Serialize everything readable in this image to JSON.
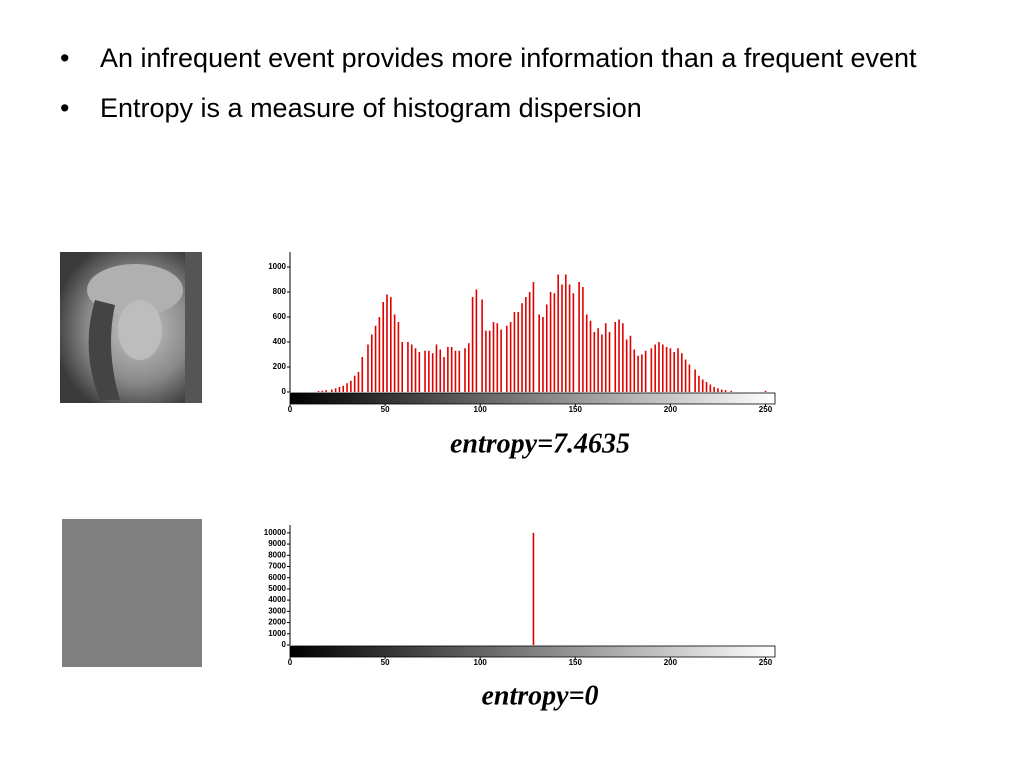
{
  "bullets": [
    "An infrequent event provides more information than a frequent event",
    "Entropy is a measure of histogram dispersion"
  ],
  "chart_data": [
    {
      "type": "bar",
      "annotation": "entropy=7.4635",
      "color": "#e00000",
      "x": [
        15,
        17,
        19,
        22,
        24,
        26,
        28,
        30,
        32,
        34,
        36,
        38,
        41,
        43,
        45,
        47,
        49,
        51,
        53,
        55,
        57,
        59,
        62,
        64,
        66,
        68,
        71,
        73,
        75,
        77,
        79,
        81,
        83,
        85,
        87,
        89,
        92,
        94,
        96,
        98,
        101,
        103,
        105,
        107,
        109,
        111,
        114,
        116,
        118,
        120,
        122,
        124,
        126,
        128,
        131,
        133,
        135,
        137,
        139,
        141,
        143,
        145,
        147,
        149,
        152,
        154,
        156,
        158,
        160,
        162,
        164,
        166,
        168,
        171,
        173,
        175,
        177,
        179,
        181,
        183,
        185,
        187,
        190,
        192,
        194,
        196,
        198,
        200,
        202,
        204,
        206,
        208,
        210,
        213,
        215,
        217,
        219,
        221,
        223,
        225,
        227,
        229,
        232,
        250
      ],
      "values": [
        8,
        10,
        15,
        20,
        30,
        40,
        50,
        70,
        90,
        130,
        160,
        280,
        380,
        460,
        530,
        600,
        720,
        780,
        760,
        620,
        560,
        400,
        400,
        380,
        350,
        320,
        330,
        330,
        310,
        380,
        340,
        280,
        360,
        360,
        330,
        330,
        350,
        390,
        760,
        820,
        740,
        490,
        490,
        560,
        550,
        500,
        530,
        560,
        640,
        640,
        710,
        760,
        800,
        880,
        620,
        600,
        700,
        800,
        790,
        940,
        860,
        940,
        860,
        790,
        880,
        840,
        620,
        570,
        480,
        510,
        460,
        550,
        480,
        560,
        580,
        550,
        420,
        450,
        340,
        290,
        300,
        330,
        350,
        380,
        400,
        380,
        360,
        350,
        320,
        350,
        310,
        260,
        220,
        180,
        130,
        100,
        80,
        60,
        40,
        30,
        20,
        15,
        10,
        10
      ],
      "xlim": [
        0,
        255
      ],
      "xticks": [
        0,
        50,
        100,
        150,
        200,
        250
      ],
      "ylim": [
        0,
        1120
      ],
      "yticks": [
        0,
        200,
        400,
        600,
        800,
        1000
      ]
    },
    {
      "type": "bar",
      "annotation": "entropy=0",
      "color": "#e00000",
      "x": [
        128
      ],
      "values": [
        10000
      ],
      "xlim": [
        0,
        255
      ],
      "xticks": [
        0,
        50,
        100,
        150,
        200,
        250
      ],
      "ylim": [
        0,
        10700
      ],
      "yticks": [
        0,
        1000,
        2000,
        3000,
        4000,
        5000,
        6000,
        7000,
        8000,
        9000,
        10000
      ]
    }
  ]
}
